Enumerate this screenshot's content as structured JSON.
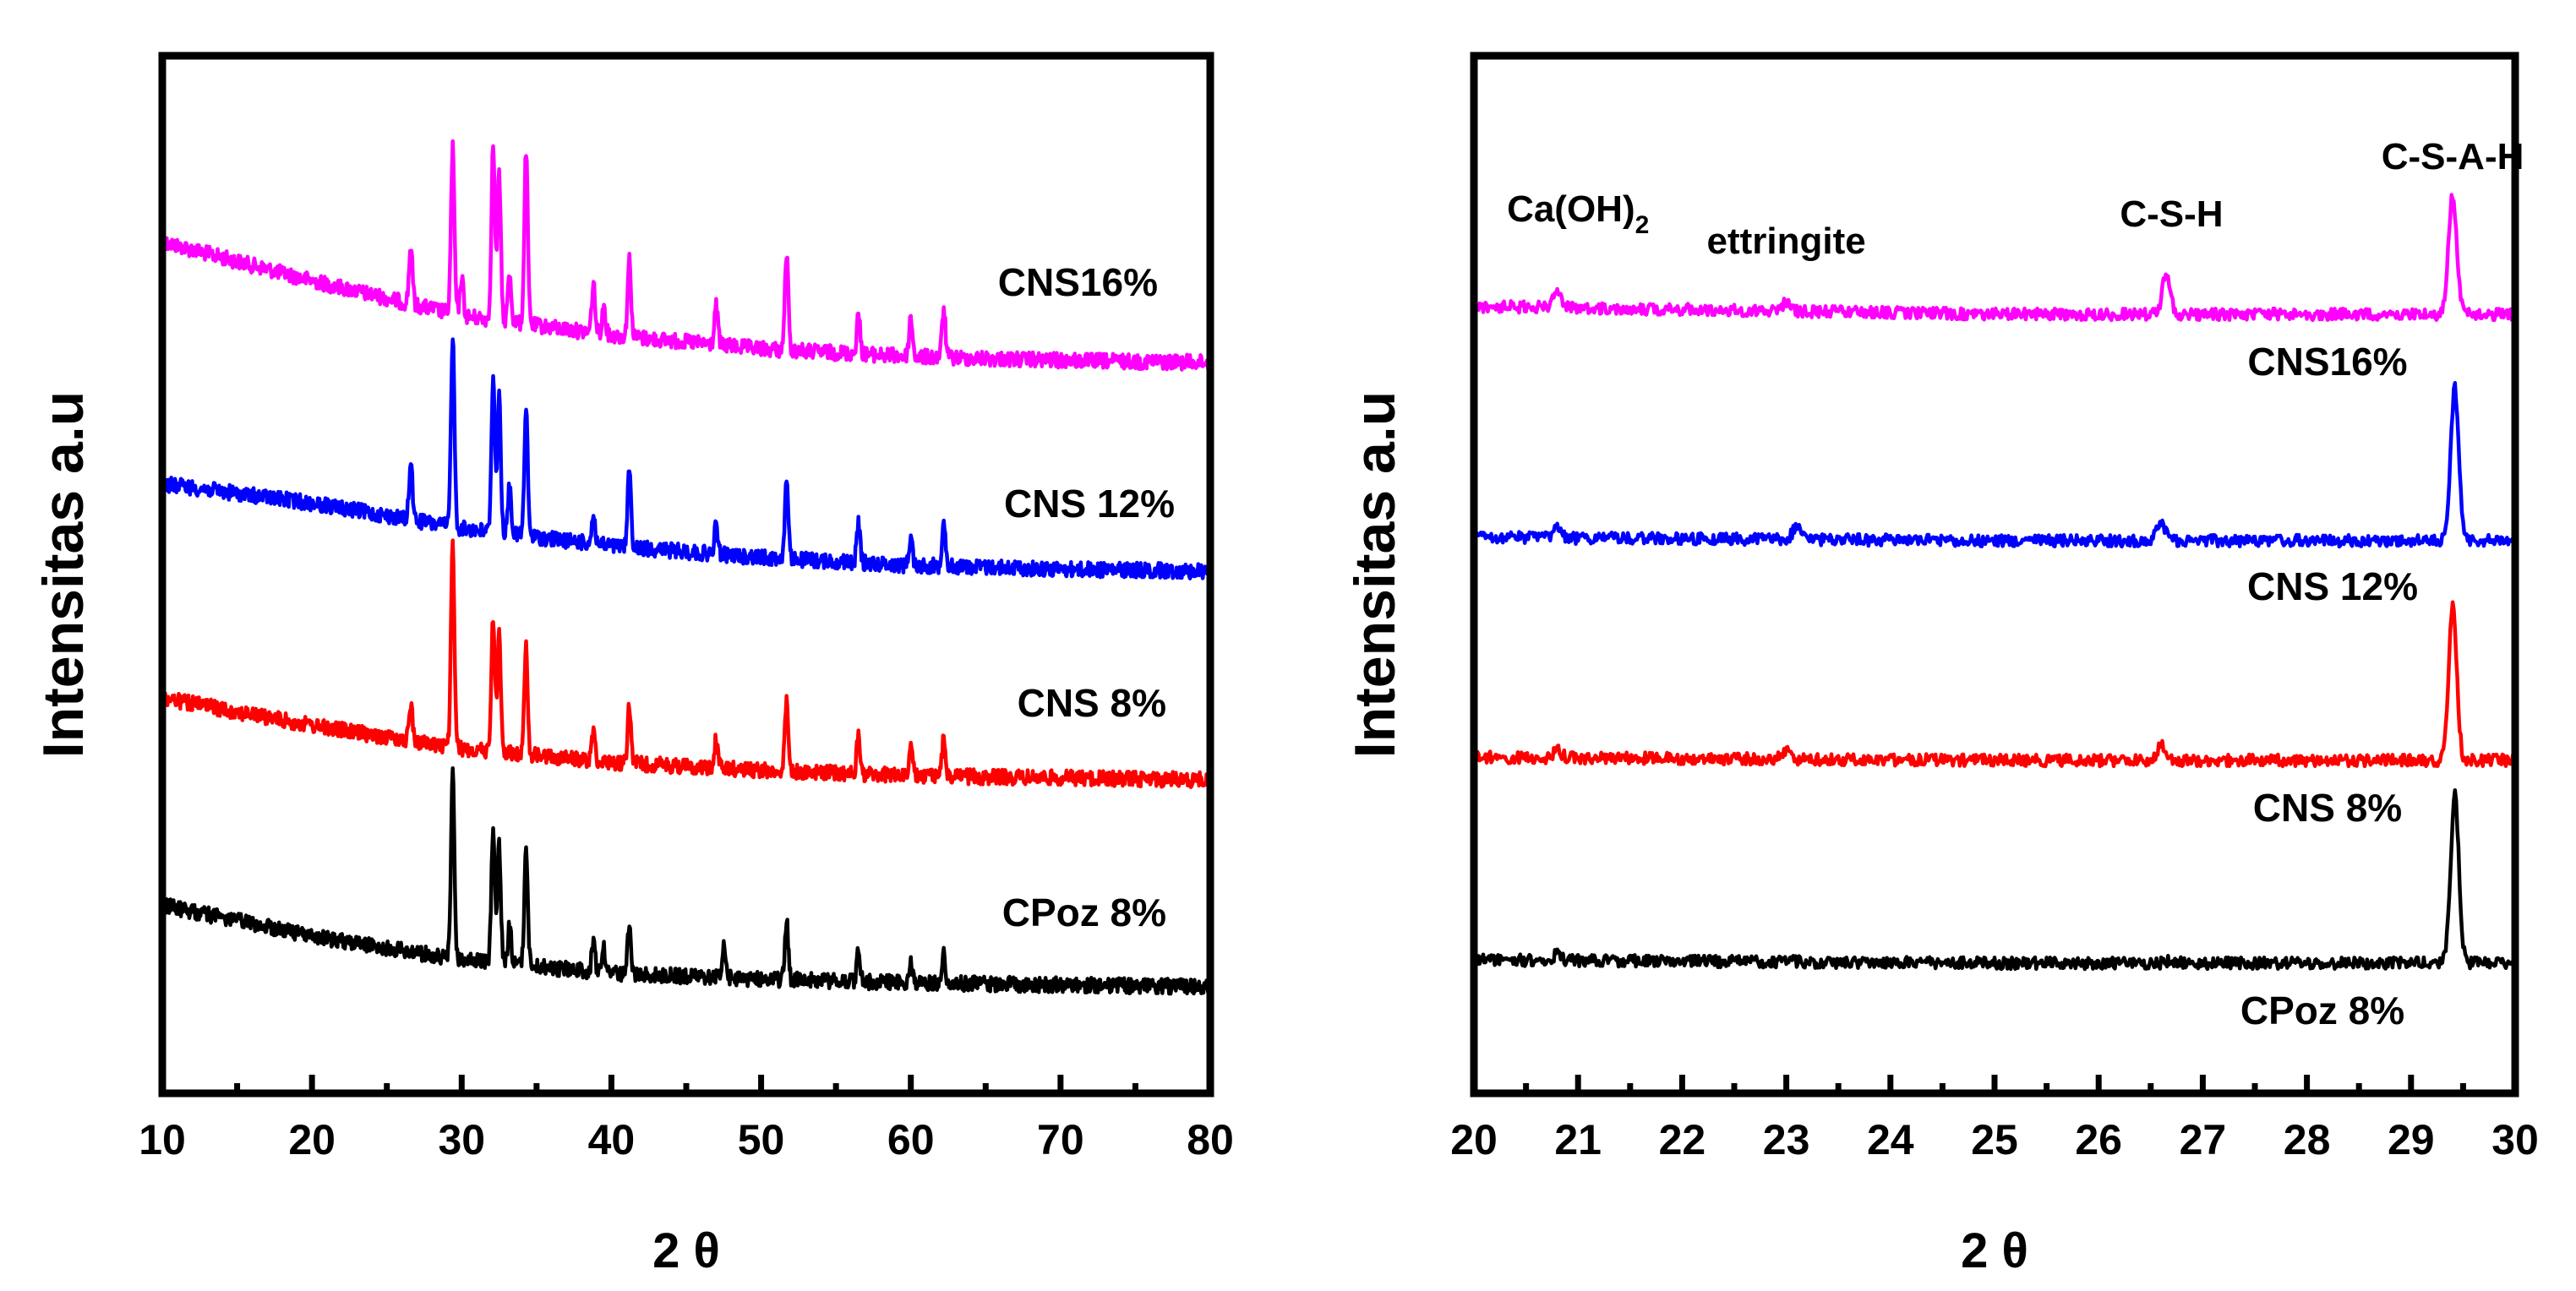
{
  "chart_data": [
    {
      "type": "line",
      "panel": "left",
      "xlabel": "2 θ",
      "ylabel": "Intensitas a.u",
      "xlim": [
        10,
        80
      ],
      "xticks": [
        10,
        20,
        30,
        40,
        50,
        60,
        70,
        80
      ],
      "y_ticks_shown": false,
      "legend": "labels beside each trace",
      "series": [
        {
          "name": "CNS16%",
          "color": "#ff00ff",
          "offset": 3,
          "baseline": [
            [
              10,
              0.62
            ],
            [
              20,
              0.42
            ],
            [
              30,
              0.24
            ],
            [
              40,
              0.14
            ],
            [
              50,
              0.07
            ],
            [
              60,
              0.03
            ],
            [
              70,
              0.01
            ],
            [
              80,
              0.0
            ]
          ],
          "peaks": [
            [
              26.6,
              0.3
            ],
            [
              29.4,
              0.85
            ],
            [
              30.0,
              0.2
            ],
            [
              32.1,
              0.9
            ],
            [
              32.5,
              0.75
            ],
            [
              33.2,
              0.25
            ],
            [
              34.3,
              0.9
            ],
            [
              38.8,
              0.25
            ],
            [
              39.5,
              0.15
            ],
            [
              41.2,
              0.4
            ],
            [
              47.0,
              0.2
            ],
            [
              51.7,
              0.5
            ],
            [
              56.5,
              0.2
            ],
            [
              60.0,
              0.2
            ],
            [
              62.2,
              0.25
            ]
          ]
        },
        {
          "name": "CNS 12%",
          "color": "#0000ff",
          "offset": 2,
          "baseline": [
            [
              10,
              0.45
            ],
            [
              20,
              0.35
            ],
            [
              30,
              0.22
            ],
            [
              40,
              0.13
            ],
            [
              50,
              0.07
            ],
            [
              60,
              0.03
            ],
            [
              70,
              0.01
            ],
            [
              80,
              0.0
            ]
          ],
          "peaks": [
            [
              26.6,
              0.3
            ],
            [
              29.4,
              1.0
            ],
            [
              32.1,
              0.8
            ],
            [
              32.5,
              0.7
            ],
            [
              33.2,
              0.25
            ],
            [
              34.3,
              0.65
            ],
            [
              38.8,
              0.15
            ],
            [
              41.2,
              0.4
            ],
            [
              47.0,
              0.15
            ],
            [
              51.7,
              0.4
            ],
            [
              56.5,
              0.2
            ],
            [
              60.0,
              0.15
            ],
            [
              62.2,
              0.25
            ]
          ]
        },
        {
          "name": "CNS 8%",
          "color": "#ff0000",
          "offset": 1,
          "baseline": [
            [
              10,
              0.42
            ],
            [
              20,
              0.28
            ],
            [
              30,
              0.16
            ],
            [
              40,
              0.09
            ],
            [
              50,
              0.05
            ],
            [
              60,
              0.02
            ],
            [
              70,
              0.01
            ],
            [
              80,
              0.0
            ]
          ],
          "peaks": [
            [
              26.6,
              0.2
            ],
            [
              29.4,
              1.05
            ],
            [
              32.1,
              0.7
            ],
            [
              32.5,
              0.6
            ],
            [
              34.3,
              0.55
            ],
            [
              38.8,
              0.15
            ],
            [
              41.2,
              0.3
            ],
            [
              47.0,
              0.15
            ],
            [
              51.7,
              0.35
            ],
            [
              56.5,
              0.2
            ],
            [
              60.0,
              0.15
            ],
            [
              62.2,
              0.2
            ]
          ]
        },
        {
          "name": "CPoz 8%",
          "color": "#000000",
          "offset": 0,
          "baseline": [
            [
              10,
              0.42
            ],
            [
              20,
              0.26
            ],
            [
              30,
              0.14
            ],
            [
              40,
              0.07
            ],
            [
              50,
              0.04
            ],
            [
              60,
              0.02
            ],
            [
              70,
              0.01
            ],
            [
              80,
              0.0
            ]
          ],
          "peaks": [
            [
              29.4,
              0.95
            ],
            [
              32.1,
              0.7
            ],
            [
              32.5,
              0.6
            ],
            [
              33.2,
              0.2
            ],
            [
              34.3,
              0.6
            ],
            [
              38.8,
              0.15
            ],
            [
              39.5,
              0.12
            ],
            [
              41.2,
              0.25
            ],
            [
              47.5,
              0.15
            ],
            [
              51.7,
              0.3
            ],
            [
              56.5,
              0.15
            ],
            [
              60.0,
              0.1
            ],
            [
              62.2,
              0.15
            ]
          ]
        }
      ]
    },
    {
      "type": "line",
      "panel": "right",
      "xlabel": "2 θ",
      "ylabel": "Intensitas a.u",
      "xlim": [
        20,
        30
      ],
      "xticks": [
        20,
        21,
        22,
        23,
        24,
        25,
        26,
        27,
        28,
        29,
        30
      ],
      "y_ticks_shown": false,
      "legend": "labels below each trace",
      "annotations": [
        {
          "text": "Ca(OH)",
          "sub": "2",
          "x": 21.0
        },
        {
          "text": "ettringite",
          "x": 23.0
        },
        {
          "text": "C-S-H",
          "x": 26.7
        },
        {
          "text": "C-S-A-H",
          "x": 29.4
        }
      ],
      "series": [
        {
          "name": "CNS16%",
          "color": "#ff00ff",
          "offset": 3,
          "baseline": [
            [
              20,
              0.05
            ],
            [
              25,
              0.0
            ],
            [
              30,
              0.0
            ]
          ],
          "peaks": [
            [
              20.8,
              0.08
            ],
            [
              23.0,
              0.06
            ],
            [
              26.65,
              0.25
            ],
            [
              29.4,
              0.75
            ]
          ]
        },
        {
          "name": "CNS 12%",
          "color": "#0000ff",
          "offset": 2,
          "baseline": [
            [
              20,
              0.02
            ],
            [
              25,
              0.0
            ],
            [
              30,
              0.0
            ]
          ],
          "peaks": [
            [
              20.8,
              0.06
            ],
            [
              23.1,
              0.08
            ],
            [
              26.6,
              0.12
            ],
            [
              29.42,
              0.95
            ]
          ]
        },
        {
          "name": "CNS 8%",
          "color": "#ff0000",
          "offset": 1,
          "baseline": [
            [
              20,
              0.02
            ],
            [
              25,
              0.0
            ],
            [
              30,
              0.0
            ]
          ],
          "peaks": [
            [
              20.8,
              0.05
            ],
            [
              23.0,
              0.05
            ],
            [
              26.6,
              0.1
            ],
            [
              29.4,
              0.95
            ]
          ]
        },
        {
          "name": "CPoz 8%",
          "color": "#000000",
          "offset": 0,
          "baseline": [
            [
              20,
              0.02
            ],
            [
              25,
              0.0
            ],
            [
              30,
              0.0
            ]
          ],
          "peaks": [
            [
              20.8,
              0.04
            ],
            [
              23.0,
              0.02
            ],
            [
              26.7,
              0.02
            ],
            [
              29.42,
              1.05
            ]
          ]
        }
      ]
    }
  ]
}
